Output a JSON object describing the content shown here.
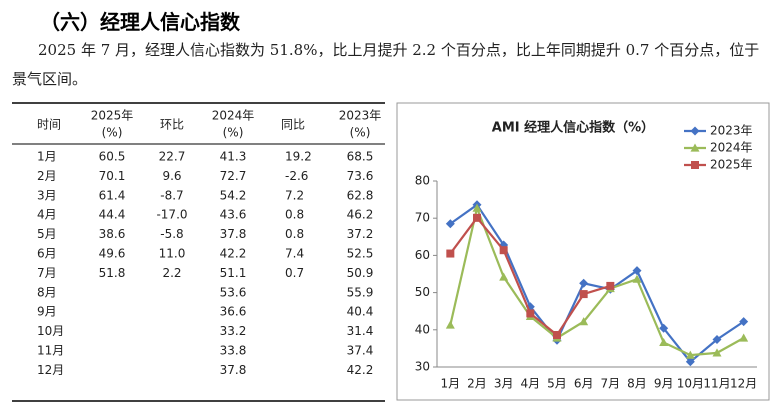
{
  "heading": "（六）经理人信心指数",
  "paragraph": "2025 年 7 月，经理人信心指数为 51.8%，比上月提升 2.2 个百分点，比上年同期提升 0.7 个百分点，位于景气区间。",
  "table": {
    "headers": [
      [
        "时间"
      ],
      [
        "2025年",
        "(%)"
      ],
      [
        "环比"
      ],
      [
        "2024年",
        "(%)"
      ],
      [
        "同比"
      ],
      [
        "2023年",
        "(%)"
      ]
    ],
    "rows": [
      [
        "1月",
        "60.5",
        "22.7",
        "41.3",
        "19.2",
        "68.5"
      ],
      [
        "2月",
        "70.1",
        "9.6",
        "72.7",
        "-2.6",
        "73.6"
      ],
      [
        "3月",
        "61.4",
        "-8.7",
        "54.2",
        "7.2",
        "62.8"
      ],
      [
        "4月",
        "44.4",
        "-17.0",
        "43.6",
        "0.8",
        "46.2"
      ],
      [
        "5月",
        "38.6",
        "-5.8",
        "37.8",
        "0.8",
        "37.2"
      ],
      [
        "6月",
        "49.6",
        "11.0",
        "42.2",
        "7.4",
        "52.5"
      ],
      [
        "7月",
        "51.8",
        "2.2",
        "51.1",
        "0.7",
        "50.9"
      ],
      [
        "8月",
        null,
        null,
        "53.6",
        null,
        "55.9"
      ],
      [
        "9月",
        null,
        null,
        "36.6",
        null,
        "40.4"
      ],
      [
        "10月",
        null,
        null,
        "33.2",
        null,
        "31.4"
      ],
      [
        "11月",
        null,
        null,
        "33.8",
        null,
        "37.4"
      ],
      [
        "12月",
        null,
        null,
        "37.8",
        null,
        "42.2"
      ]
    ]
  },
  "chart_data": {
    "type": "line",
    "title": "AMI 经理人信心指数（%）",
    "categories": [
      "1月",
      "2月",
      "3月",
      "4月",
      "5月",
      "6月",
      "7月",
      "8月",
      "9月",
      "10月",
      "11月",
      "12月"
    ],
    "series": [
      {
        "name": "2023年",
        "color": "#4472c4",
        "marker": "diamond",
        "values": [
          68.5,
          73.6,
          62.8,
          46.2,
          37.2,
          52.5,
          50.9,
          55.9,
          40.4,
          31.4,
          37.4,
          42.2
        ]
      },
      {
        "name": "2024年",
        "color": "#9bbb59",
        "marker": "triangle",
        "values": [
          41.3,
          72.7,
          54.2,
          43.6,
          37.8,
          42.2,
          51.1,
          53.6,
          36.6,
          33.2,
          33.8,
          37.8
        ]
      },
      {
        "name": "2025年",
        "color": "#c0504d",
        "marker": "square",
        "values": [
          60.5,
          70.1,
          61.4,
          44.4,
          38.6,
          49.6,
          51.8,
          null,
          null,
          null,
          null,
          null
        ]
      }
    ],
    "ylim": [
      30,
      80
    ],
    "yticks": [
      30,
      40,
      50,
      60,
      70,
      80
    ],
    "legend": "upper right"
  }
}
